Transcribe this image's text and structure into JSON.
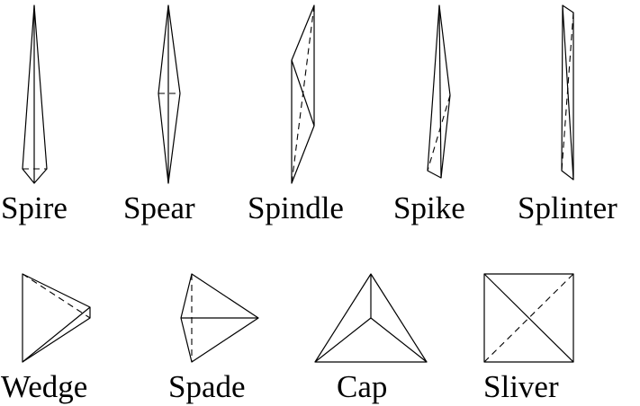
{
  "shapes": [
    {
      "id": "spire",
      "label": "Spire"
    },
    {
      "id": "spear",
      "label": "Spear"
    },
    {
      "id": "spindle",
      "label": "Spindle"
    },
    {
      "id": "spike",
      "label": "Spike"
    },
    {
      "id": "splinter",
      "label": "Splinter"
    },
    {
      "id": "wedge",
      "label": "Wedge"
    },
    {
      "id": "spade",
      "label": "Spade"
    },
    {
      "id": "cap",
      "label": "Cap"
    },
    {
      "id": "sliver",
      "label": "Sliver"
    }
  ]
}
